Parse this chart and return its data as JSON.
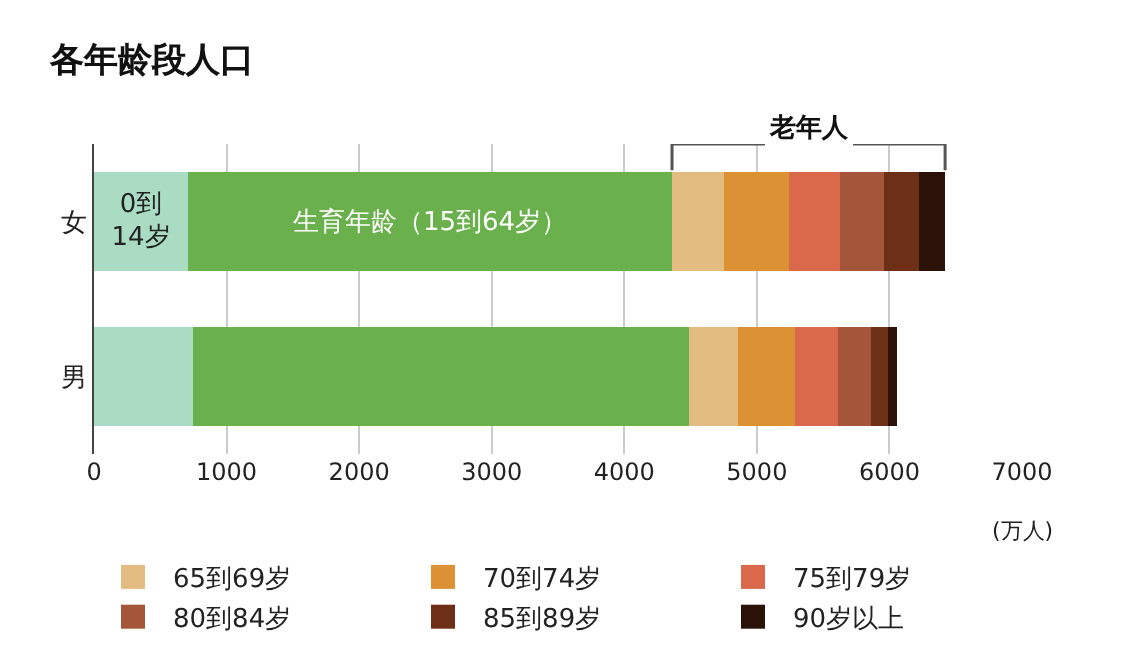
{
  "chart_data": {
    "type": "bar",
    "orientation": "horizontal",
    "stacked": true,
    "title": "各年龄段人口",
    "xlabel": "(万人)",
    "categories": [
      "女",
      "男"
    ],
    "series": [
      {
        "name": "0到\n14岁",
        "color": "#a9dcc3",
        "values": [
          710,
          750
        ]
      },
      {
        "name": "生育年龄（15到64岁）",
        "color": "#6ab04c",
        "values": [
          3650,
          3740
        ]
      },
      {
        "name": "65到69岁",
        "color": "#e2bc80",
        "values": [
          390,
          370
        ]
      },
      {
        "name": "70到74岁",
        "color": "#dc9135",
        "values": [
          490,
          430
        ]
      },
      {
        "name": "75到79岁",
        "color": "#d9694a",
        "values": [
          390,
          320
        ]
      },
      {
        "name": "80到84岁",
        "color": "#a5553a",
        "values": [
          330,
          250
        ]
      },
      {
        "name": "85到89岁",
        "color": "#6e2f17",
        "values": [
          260,
          130
        ]
      },
      {
        "name": "90岁以上",
        "color": "#2a1208",
        "values": [
          200,
          70
        ]
      }
    ],
    "annotations": [
      "老年人"
    ],
    "xlim": [
      0,
      7000
    ],
    "xticks": [
      0,
      1000,
      2000,
      3000,
      4000,
      5000,
      6000,
      7000
    ],
    "grid": "x",
    "legend": "bottom"
  }
}
